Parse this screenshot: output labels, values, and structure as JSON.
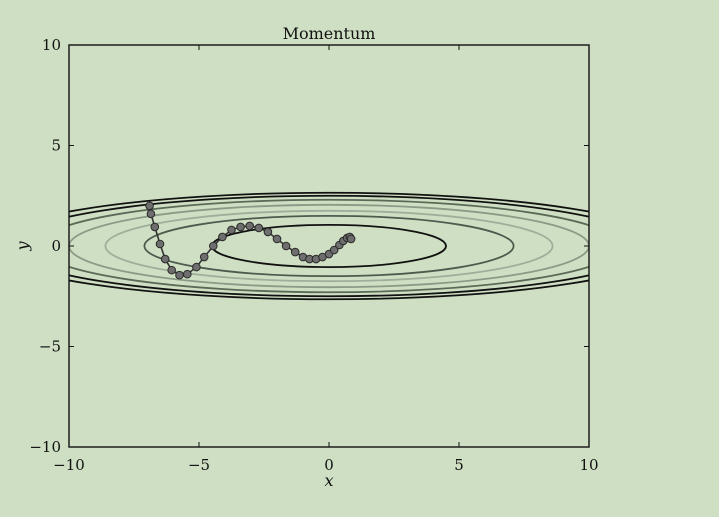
{
  "chart_data": {
    "type": "line",
    "title": "Momentum",
    "xlabel": "x",
    "ylabel": "y",
    "xlim": [
      -10,
      10
    ],
    "ylim": [
      -10,
      10
    ],
    "xticks": [
      -10,
      -5,
      0,
      5,
      10
    ],
    "yticks": [
      -10,
      -5,
      0,
      5,
      10
    ],
    "xtick_labels": [
      "−10",
      "−5",
      "0",
      "5",
      "10"
    ],
    "ytick_labels": [
      "−10",
      "−5",
      "0",
      "5",
      "10"
    ],
    "grid": false,
    "legend": "none",
    "contours": {
      "shape": "ellipse",
      "center": [
        0,
        0
      ],
      "levels": [
        {
          "a": 4.5,
          "b": 1.05,
          "color": "#111111"
        },
        {
          "a": 7.1,
          "b": 1.5,
          "color": "#4d5a4d"
        },
        {
          "a": 8.6,
          "b": 1.75,
          "color": "#9fae9a"
        },
        {
          "a": 10.0,
          "b": 2.05,
          "color": "#8a9a86"
        },
        {
          "a": 11.2,
          "b": 2.3,
          "color": "#5b6a57"
        },
        {
          "a": 12.3,
          "b": 2.5,
          "color": "#111111"
        },
        {
          "a": 13.1,
          "b": 2.65,
          "color": "#111111"
        }
      ]
    },
    "series": [
      {
        "marker_color": "#6e6e6e",
        "line_color": "#333333",
        "x": [
          -6.9,
          -6.85,
          -6.7,
          -6.5,
          -6.3,
          -6.05,
          -5.75,
          -5.45,
          -5.1,
          -4.8,
          -4.45,
          -4.1,
          -3.75,
          -3.4,
          -3.05,
          -2.7,
          -2.35,
          -2.0,
          -1.65,
          -1.3,
          -1.0,
          -0.75,
          -0.5,
          -0.25,
          0.0,
          0.2,
          0.4,
          0.55,
          0.7,
          0.8,
          0.85
        ],
        "y": [
          2.0,
          1.6,
          0.95,
          0.1,
          -0.65,
          -1.2,
          -1.45,
          -1.4,
          -1.05,
          -0.55,
          0.0,
          0.45,
          0.8,
          0.95,
          1.0,
          0.9,
          0.7,
          0.35,
          0.0,
          -0.3,
          -0.55,
          -0.65,
          -0.65,
          -0.55,
          -0.4,
          -0.2,
          0.05,
          0.25,
          0.4,
          0.45,
          0.35
        ]
      }
    ]
  }
}
